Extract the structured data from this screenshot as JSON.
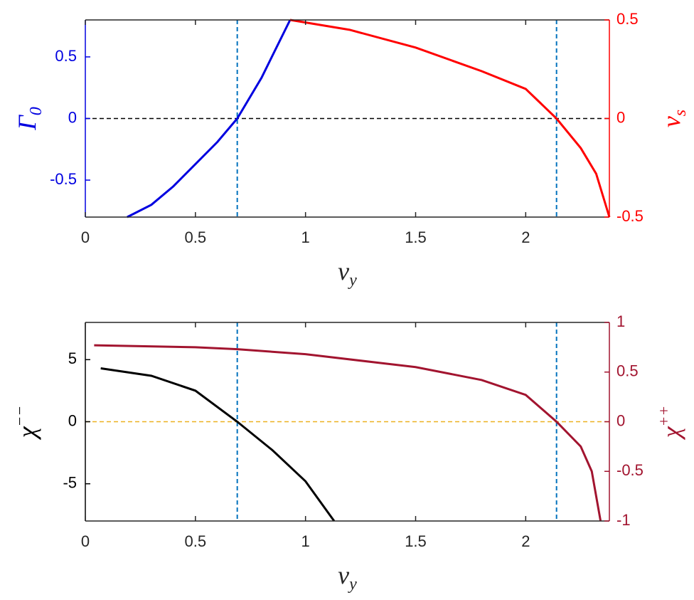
{
  "chart_data": [
    {
      "type": "line",
      "xlabel": {
        "text": "v",
        "sub": "y"
      },
      "ylabel": {
        "text": "Γ",
        "sub": "0"
      },
      "y2label": {
        "text": "v",
        "sub": "s"
      },
      "xlim": [
        0,
        2.38
      ],
      "xticks": [
        0,
        0.5,
        1,
        1.5,
        2
      ],
      "ylim": [
        -0.8,
        0.8
      ],
      "yticks": [
        -0.5,
        0,
        0.5
      ],
      "y2lim": [
        -0.5,
        0.5
      ],
      "y2ticks": [
        -0.5,
        0,
        0.5
      ],
      "series": [
        {
          "color": "#0000e0",
          "x": [
            0.19,
            0.3,
            0.4,
            0.5,
            0.6,
            0.69,
            0.8,
            0.93
          ],
          "values": [
            -0.8,
            -0.7,
            -0.55,
            -0.37,
            -0.19,
            0,
            0.33,
            0.8
          ]
        },
        {
          "color": "#ff0000",
          "axis": "y2",
          "x": [
            0.93,
            1.2,
            1.5,
            1.8,
            2.0,
            2.14,
            2.25,
            2.32,
            2.38
          ],
          "values": [
            0.5,
            0.45,
            0.36,
            0.24,
            0.15,
            0,
            -0.15,
            -0.28,
            -0.5
          ]
        }
      ],
      "vlines": [
        0.69,
        2.14
      ],
      "vline_color": "#0072bd",
      "hline": 0,
      "hline_color": "#000000"
    },
    {
      "type": "line",
      "xlabel": {
        "text": "v",
        "sub": "y"
      },
      "ylabel": {
        "text": "χ",
        "sup": "−−"
      },
      "y2label": {
        "text": "χ",
        "sup": "++"
      },
      "xlim": [
        0,
        2.38
      ],
      "xticks": [
        0,
        0.5,
        1,
        1.5,
        2
      ],
      "ylim": [
        -8,
        8
      ],
      "yticks": [
        -5,
        0,
        5
      ],
      "y2lim": [
        -1,
        1
      ],
      "y2ticks": [
        -1,
        -0.5,
        0,
        0.5,
        1
      ],
      "series": [
        {
          "color": "#000000",
          "x": [
            0.07,
            0.3,
            0.5,
            0.69,
            0.85,
            1.0,
            1.13
          ],
          "values": [
            4.3,
            3.7,
            2.5,
            0,
            -2.3,
            -4.8,
            -8
          ]
        },
        {
          "color": "#a2142f",
          "axis": "y2",
          "x": [
            0.04,
            0.5,
            0.69,
            1.0,
            1.5,
            1.8,
            2.0,
            2.14,
            2.25,
            2.3,
            2.34
          ],
          "values": [
            0.77,
            0.75,
            0.73,
            0.68,
            0.55,
            0.42,
            0.27,
            0,
            -0.25,
            -0.5,
            -1
          ]
        }
      ],
      "vlines": [
        0.69,
        2.14
      ],
      "vline_color": "#0072bd",
      "hline": 0,
      "hline_color": "#edb120"
    }
  ]
}
